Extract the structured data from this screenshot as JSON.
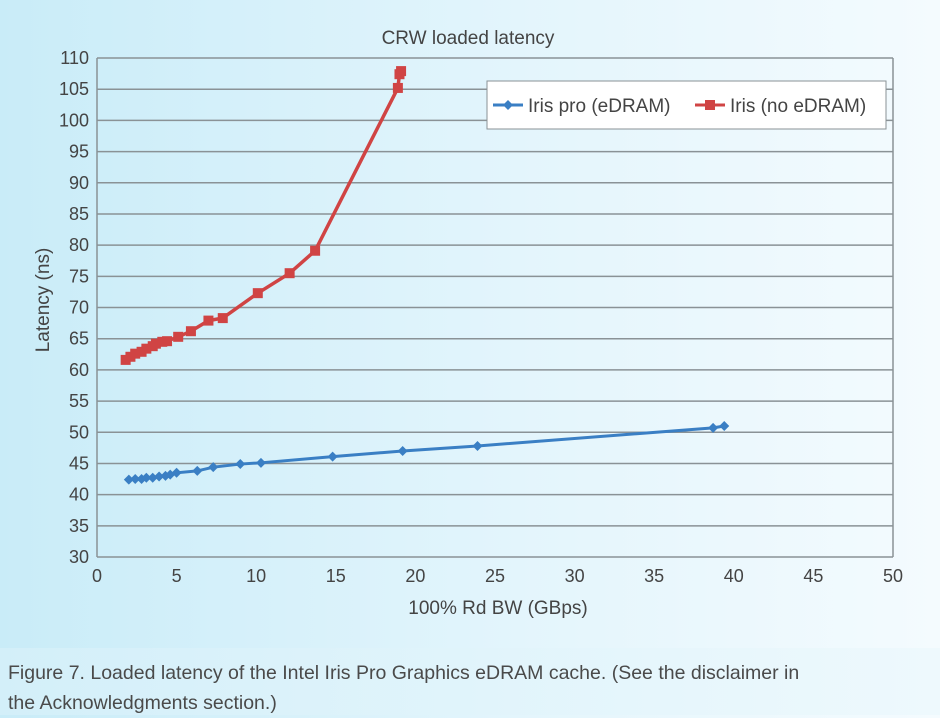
{
  "chart_data": {
    "type": "line",
    "title": "CRW loaded latency",
    "xlabel": "100% Rd BW (GBps)",
    "ylabel": "Latency (ns)",
    "xlim": [
      0,
      50
    ],
    "ylim": [
      30,
      110
    ],
    "xticks": [
      0,
      5,
      10,
      15,
      20,
      25,
      30,
      35,
      40,
      45,
      50
    ],
    "yticks": [
      30,
      35,
      40,
      45,
      50,
      55,
      60,
      65,
      70,
      75,
      80,
      85,
      90,
      95,
      100,
      105,
      110
    ],
    "grid": "horizontal",
    "legend_position": "top-right",
    "series": [
      {
        "name": "Iris pro (eDRAM)",
        "color": "#3a7fc4",
        "marker": "diamond",
        "x": [
          2.0,
          2.4,
          2.8,
          3.1,
          3.5,
          3.9,
          4.3,
          4.6,
          5.0,
          6.3,
          7.3,
          9.0,
          10.3,
          14.8,
          19.2,
          23.9,
          38.7,
          39.4
        ],
        "y": [
          42.4,
          42.5,
          42.5,
          42.7,
          42.7,
          42.9,
          43.0,
          43.2,
          43.5,
          43.8,
          44.4,
          44.9,
          45.1,
          46.1,
          47.0,
          47.8,
          50.7,
          51.0
        ]
      },
      {
        "name": "Iris (no eDRAM)",
        "color": "#d04444",
        "marker": "square",
        "x": [
          1.8,
          2.1,
          2.4,
          2.8,
          3.1,
          3.5,
          3.7,
          4.1,
          4.4,
          5.1,
          5.9,
          7.0,
          7.9,
          10.1,
          12.1,
          13.7,
          18.9,
          19.0,
          19.1
        ],
        "y": [
          61.6,
          62.1,
          62.6,
          62.9,
          63.4,
          63.8,
          64.2,
          64.5,
          64.6,
          65.3,
          66.2,
          67.9,
          68.3,
          72.3,
          75.5,
          79.1,
          105.2,
          107.4,
          107.9
        ]
      }
    ]
  },
  "caption": {
    "line1": "Figure 7.  Loaded latency of the Intel Iris Pro Graphics eDRAM cache. (See the disclaimer in",
    "line2": "the Acknowledgments section.)"
  }
}
